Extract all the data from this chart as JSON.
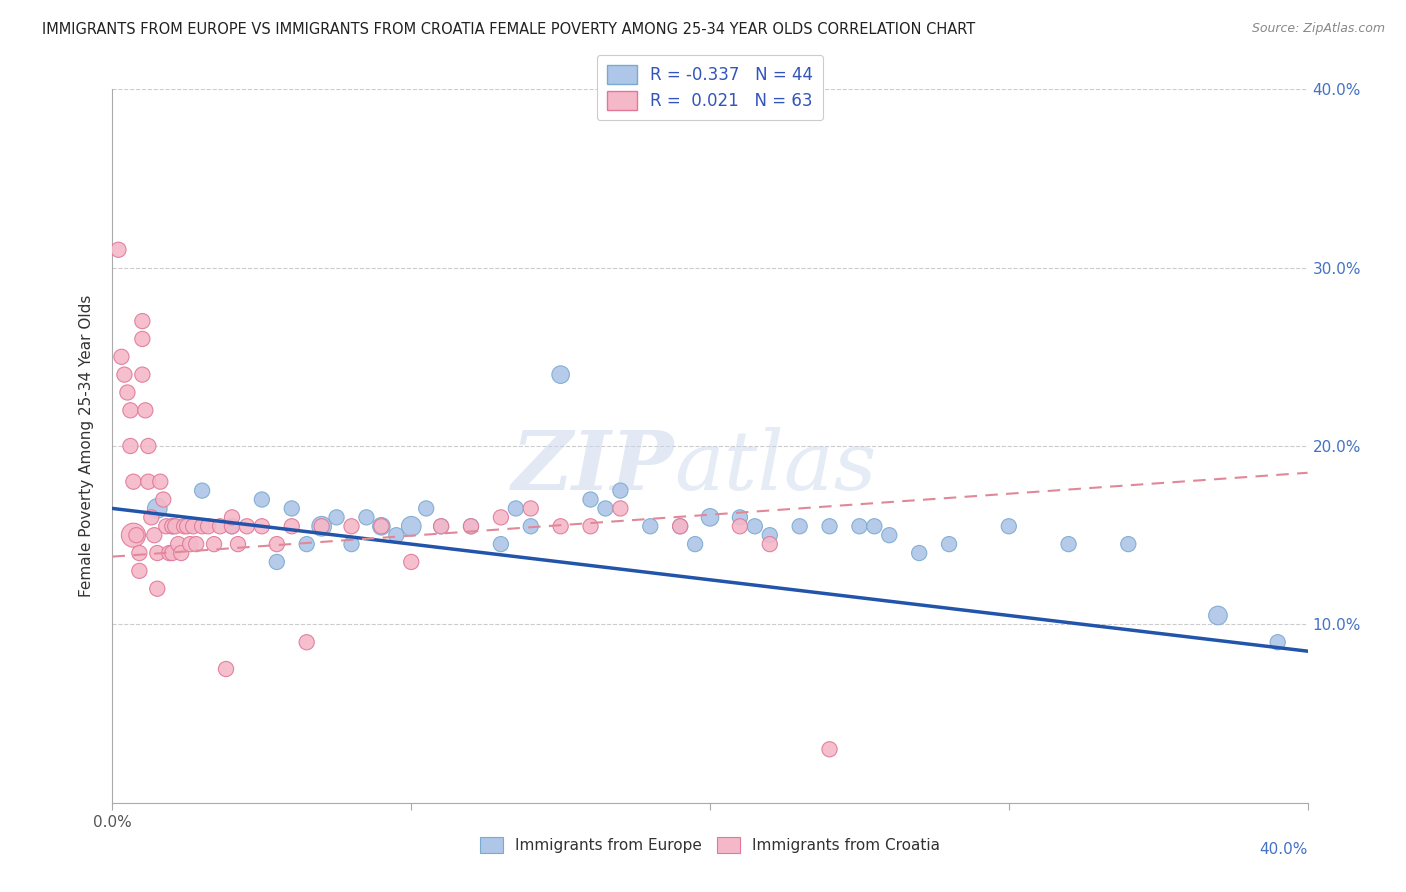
{
  "title": "IMMIGRANTS FROM EUROPE VS IMMIGRANTS FROM CROATIA FEMALE POVERTY AMONG 25-34 YEAR OLDS CORRELATION CHART",
  "source": "Source: ZipAtlas.com",
  "ylabel": "Female Poverty Among 25-34 Year Olds",
  "xlim": [
    0.0,
    0.4
  ],
  "ylim": [
    0.0,
    0.4
  ],
  "ytick_values": [
    0.0,
    0.1,
    0.2,
    0.3,
    0.4
  ],
  "xtick_values": [
    0.0,
    0.1,
    0.2,
    0.3,
    0.4
  ],
  "europe_color": "#aec6e8",
  "europe_edge": "#7aaad0",
  "croatia_color": "#f5b8c8",
  "croatia_edge": "#e07898",
  "europe_R": -0.337,
  "europe_N": 44,
  "croatia_R": 0.021,
  "croatia_N": 63,
  "europe_line_color": "#2255aa",
  "croatia_line_color": "#e08898",
  "europe_x": [
    0.015,
    0.02,
    0.03,
    0.04,
    0.05,
    0.055,
    0.06,
    0.065,
    0.07,
    0.075,
    0.08,
    0.085,
    0.09,
    0.095,
    0.1,
    0.105,
    0.11,
    0.12,
    0.13,
    0.135,
    0.14,
    0.15,
    0.16,
    0.165,
    0.17,
    0.18,
    0.19,
    0.195,
    0.2,
    0.21,
    0.215,
    0.22,
    0.23,
    0.24,
    0.25,
    0.255,
    0.26,
    0.27,
    0.28,
    0.3,
    0.32,
    0.34,
    0.37,
    0.39
  ],
  "europe_y": [
    0.165,
    0.155,
    0.175,
    0.155,
    0.17,
    0.135,
    0.165,
    0.145,
    0.155,
    0.16,
    0.145,
    0.16,
    0.155,
    0.15,
    0.155,
    0.165,
    0.155,
    0.155,
    0.145,
    0.165,
    0.155,
    0.24,
    0.17,
    0.165,
    0.175,
    0.155,
    0.155,
    0.145,
    0.16,
    0.16,
    0.155,
    0.15,
    0.155,
    0.155,
    0.155,
    0.155,
    0.15,
    0.14,
    0.145,
    0.155,
    0.145,
    0.145,
    0.105,
    0.09
  ],
  "europe_size": [
    200,
    120,
    120,
    120,
    120,
    120,
    120,
    120,
    200,
    120,
    120,
    120,
    160,
    120,
    200,
    120,
    120,
    120,
    120,
    120,
    120,
    160,
    120,
    120,
    120,
    120,
    120,
    120,
    160,
    120,
    120,
    120,
    120,
    120,
    120,
    120,
    120,
    120,
    120,
    120,
    120,
    120,
    180,
    120
  ],
  "croatia_x": [
    0.002,
    0.003,
    0.004,
    0.005,
    0.006,
    0.006,
    0.007,
    0.007,
    0.008,
    0.009,
    0.009,
    0.01,
    0.01,
    0.01,
    0.011,
    0.012,
    0.012,
    0.013,
    0.014,
    0.015,
    0.015,
    0.016,
    0.017,
    0.018,
    0.019,
    0.02,
    0.02,
    0.021,
    0.022,
    0.023,
    0.024,
    0.025,
    0.026,
    0.027,
    0.028,
    0.03,
    0.032,
    0.034,
    0.036,
    0.038,
    0.04,
    0.04,
    0.042,
    0.045,
    0.05,
    0.055,
    0.06,
    0.065,
    0.07,
    0.08,
    0.09,
    0.1,
    0.11,
    0.12,
    0.13,
    0.14,
    0.15,
    0.16,
    0.17,
    0.19,
    0.21,
    0.22,
    0.24
  ],
  "croatia_y": [
    0.31,
    0.25,
    0.24,
    0.23,
    0.22,
    0.2,
    0.18,
    0.15,
    0.15,
    0.14,
    0.13,
    0.27,
    0.26,
    0.24,
    0.22,
    0.2,
    0.18,
    0.16,
    0.15,
    0.14,
    0.12,
    0.18,
    0.17,
    0.155,
    0.14,
    0.155,
    0.14,
    0.155,
    0.145,
    0.14,
    0.155,
    0.155,
    0.145,
    0.155,
    0.145,
    0.155,
    0.155,
    0.145,
    0.155,
    0.075,
    0.155,
    0.16,
    0.145,
    0.155,
    0.155,
    0.145,
    0.155,
    0.09,
    0.155,
    0.155,
    0.155,
    0.135,
    0.155,
    0.155,
    0.16,
    0.165,
    0.155,
    0.155,
    0.165,
    0.155,
    0.155,
    0.145,
    0.03
  ],
  "croatia_size": [
    120,
    120,
    120,
    120,
    120,
    120,
    120,
    300,
    120,
    120,
    120,
    120,
    120,
    120,
    120,
    120,
    120,
    120,
    120,
    120,
    120,
    120,
    120,
    120,
    120,
    120,
    120,
    120,
    120,
    120,
    120,
    120,
    120,
    120,
    120,
    120,
    120,
    120,
    120,
    120,
    120,
    120,
    120,
    120,
    120,
    120,
    120,
    120,
    120,
    120,
    120,
    120,
    120,
    120,
    120,
    120,
    120,
    120,
    120,
    120,
    120,
    120,
    120
  ]
}
